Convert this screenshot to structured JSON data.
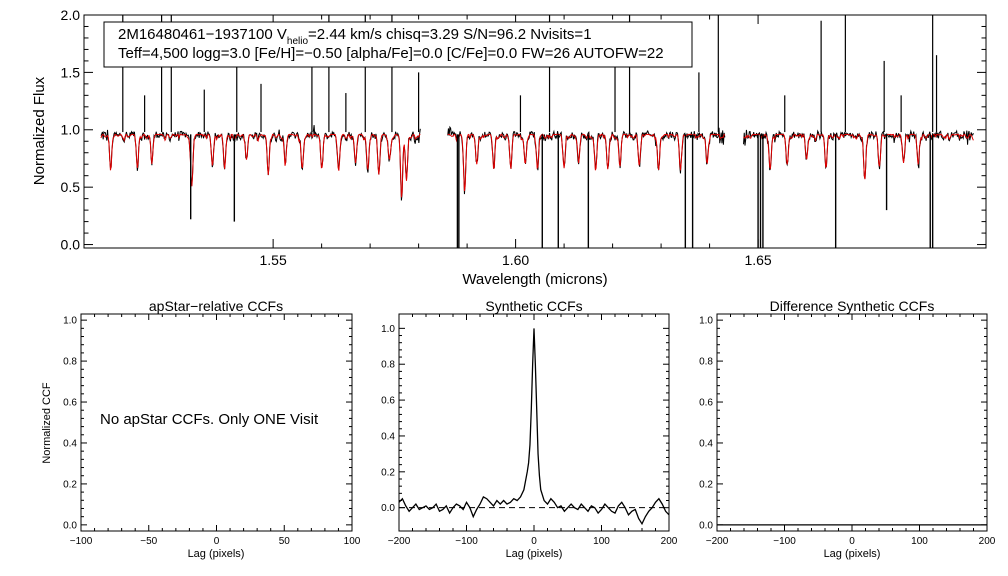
{
  "chart_data": [
    {
      "type": "line",
      "title": "",
      "xlabel": "Wavelength (microns)",
      "ylabel": "Normalized Flux",
      "xlim": [
        1.511,
        1.697
      ],
      "ylim": [
        -0.03,
        2.0
      ],
      "xticks": [
        1.55,
        1.6,
        1.65
      ],
      "xtick_labels": [
        "1.55",
        "1.60",
        "1.65"
      ],
      "yticks": [
        0.0,
        0.5,
        1.0,
        1.5,
        2.0
      ],
      "ytick_labels": [
        "0.0",
        "0.5",
        "1.0",
        "1.5",
        "2.0"
      ],
      "annotation": {
        "line1_prefix": "2M16480461−1937100  V",
        "line1_sub": "helio",
        "line1_rest": "=2.44 km/s  chisq=3.29  S/N=96.2  Nvisits=1",
        "line2": "Teff=4,500 logg=3.0 [Fe/H]=−0.50 [alpha/Fe]=0.0 [C/Fe]=0.0 FW=26 AUTOFW=22"
      },
      "colors": {
        "observed": "#000000",
        "model": "#e00000"
      },
      "series": [
        {
          "name": "observed spectrum",
          "color": "#000000"
        },
        {
          "name": "synthetic model",
          "color": "#e00000"
        }
      ],
      "chips": [
        [
          1.5145,
          1.5805
        ],
        [
          1.586,
          1.6432
        ],
        [
          1.647,
          1.6945
        ]
      ],
      "spikes_up": [
        {
          "x": 1.519,
          "y": 2.0
        },
        {
          "x": 1.5235,
          "y": 1.3
        },
        {
          "x": 1.527,
          "y": 2.0
        },
        {
          "x": 1.529,
          "y": 2.0
        },
        {
          "x": 1.5358,
          "y": 1.35
        },
        {
          "x": 1.5425,
          "y": 1.75
        },
        {
          "x": 1.5475,
          "y": 1.4
        },
        {
          "x": 1.558,
          "y": 1.55
        },
        {
          "x": 1.5615,
          "y": 2.0
        },
        {
          "x": 1.565,
          "y": 1.32
        },
        {
          "x": 1.569,
          "y": 2.0
        },
        {
          "x": 1.5745,
          "y": 2.0
        },
        {
          "x": 1.58,
          "y": 1.5
        },
        {
          "x": 1.601,
          "y": 1.3
        },
        {
          "x": 1.607,
          "y": 2.0
        },
        {
          "x": 1.6205,
          "y": 1.6
        },
        {
          "x": 1.6235,
          "y": 2.0
        },
        {
          "x": 1.6378,
          "y": 1.5
        },
        {
          "x": 1.6418,
          "y": 2.0
        },
        {
          "x": 1.6555,
          "y": 1.3
        },
        {
          "x": 1.663,
          "y": 1.95
        },
        {
          "x": 1.668,
          "y": 2.0
        },
        {
          "x": 1.676,
          "y": 1.6
        },
        {
          "x": 1.6795,
          "y": 1.3
        },
        {
          "x": 1.686,
          "y": 2.0
        },
        {
          "x": 1.6868,
          "y": 1.65
        }
      ],
      "spikes_down": [
        {
          "x": 1.533,
          "y": 0.22
        },
        {
          "x": 1.542,
          "y": 0.2
        },
        {
          "x": 1.588,
          "y": -0.03
        },
        {
          "x": 1.5883,
          "y": -0.03
        },
        {
          "x": 1.6055,
          "y": -0.03
        },
        {
          "x": 1.6088,
          "y": -0.03
        },
        {
          "x": 1.615,
          "y": -0.03
        },
        {
          "x": 1.635,
          "y": -0.03
        },
        {
          "x": 1.6365,
          "y": -0.03
        },
        {
          "x": 1.65,
          "y": -0.03
        },
        {
          "x": 1.6505,
          "y": -0.03
        },
        {
          "x": 1.651,
          "y": -0.03
        },
        {
          "x": 1.666,
          "y": -0.03
        },
        {
          "x": 1.6765,
          "y": 0.3
        },
        {
          "x": 1.6855,
          "y": -0.03
        },
        {
          "x": 1.686,
          "y": -0.03
        }
      ],
      "absorption_lines": [
        {
          "x": 1.5165,
          "depth": 0.3
        },
        {
          "x": 1.522,
          "depth": 0.28
        },
        {
          "x": 1.525,
          "depth": 0.22
        },
        {
          "x": 1.5332,
          "depth": 0.45
        },
        {
          "x": 1.5375,
          "depth": 0.25
        },
        {
          "x": 1.54,
          "depth": 0.3
        },
        {
          "x": 1.5445,
          "depth": 0.22
        },
        {
          "x": 1.549,
          "depth": 0.35
        },
        {
          "x": 1.5525,
          "depth": 0.25
        },
        {
          "x": 1.556,
          "depth": 0.3
        },
        {
          "x": 1.56,
          "depth": 0.28
        },
        {
          "x": 1.5635,
          "depth": 0.32
        },
        {
          "x": 1.567,
          "depth": 0.25
        },
        {
          "x": 1.5695,
          "depth": 0.3
        },
        {
          "x": 1.5718,
          "depth": 0.35
        },
        {
          "x": 1.574,
          "depth": 0.22
        },
        {
          "x": 1.5765,
          "depth": 0.55
        },
        {
          "x": 1.5775,
          "depth": 0.4
        },
        {
          "x": 1.5895,
          "depth": 0.5
        },
        {
          "x": 1.592,
          "depth": 0.25
        },
        {
          "x": 1.5955,
          "depth": 0.3
        },
        {
          "x": 1.599,
          "depth": 0.28
        },
        {
          "x": 1.602,
          "depth": 0.25
        },
        {
          "x": 1.6045,
          "depth": 0.3
        },
        {
          "x": 1.61,
          "depth": 0.28
        },
        {
          "x": 1.613,
          "depth": 0.25
        },
        {
          "x": 1.6165,
          "depth": 0.32
        },
        {
          "x": 1.619,
          "depth": 0.3
        },
        {
          "x": 1.6215,
          "depth": 0.28
        },
        {
          "x": 1.6255,
          "depth": 0.25
        },
        {
          "x": 1.6295,
          "depth": 0.3
        },
        {
          "x": 1.634,
          "depth": 0.28
        },
        {
          "x": 1.6395,
          "depth": 0.25
        },
        {
          "x": 1.6525,
          "depth": 0.3
        },
        {
          "x": 1.656,
          "depth": 0.25
        },
        {
          "x": 1.66,
          "depth": 0.22
        },
        {
          "x": 1.664,
          "depth": 0.28
        },
        {
          "x": 1.672,
          "depth": 0.4
        },
        {
          "x": 1.675,
          "depth": 0.25
        },
        {
          "x": 1.68,
          "depth": 0.22
        },
        {
          "x": 1.683,
          "depth": 0.25
        }
      ]
    },
    {
      "type": "line",
      "title": "apStar−relative CCFs",
      "xlabel": "Lag (pixels)",
      "ylabel": "Normalized CCF",
      "xlim": [
        -100,
        100
      ],
      "ylim": [
        -0.03,
        1.03
      ],
      "xticks": [
        -100,
        -50,
        0,
        50,
        100
      ],
      "xtick_labels": [
        "−100",
        "−50",
        "0",
        "50",
        "100"
      ],
      "yticks": [
        0.0,
        0.2,
        0.4,
        0.6,
        0.8,
        1.0
      ],
      "ytick_labels": [
        "0.0",
        "0.2",
        "0.4",
        "0.6",
        "0.8",
        "1.0"
      ],
      "message": "No apStar CCFs.  Only ONE Visit",
      "series": []
    },
    {
      "type": "line",
      "title": "Synthetic CCFs",
      "xlabel": "Lag (pixels)",
      "ylabel": "",
      "xlim": [
        -200,
        200
      ],
      "ylim": [
        -0.13,
        1.08
      ],
      "xticks": [
        -200,
        -100,
        0,
        100,
        200
      ],
      "xtick_labels": [
        "−200",
        "−100",
        "0",
        "100",
        "200"
      ],
      "yticks": [
        0.0,
        0.2,
        0.4,
        0.6,
        0.8,
        1.0
      ],
      "ytick_labels": [
        "0.0",
        "0.2",
        "0.4",
        "0.6",
        "0.8",
        "1.0"
      ],
      "baseline": 0.0,
      "series": [
        {
          "name": "synthetic CCF",
          "x": [
            -200,
            -195,
            -190,
            -185,
            -180,
            -175,
            -170,
            -165,
            -160,
            -155,
            -150,
            -145,
            -140,
            -135,
            -130,
            -125,
            -120,
            -115,
            -110,
            -105,
            -100,
            -95,
            -90,
            -85,
            -80,
            -75,
            -70,
            -65,
            -60,
            -55,
            -50,
            -45,
            -40,
            -35,
            -30,
            -25,
            -20,
            -15,
            -10,
            -8,
            -6,
            -4,
            -2,
            0,
            2,
            4,
            6,
            8,
            10,
            15,
            20,
            25,
            30,
            35,
            40,
            45,
            50,
            55,
            60,
            65,
            70,
            75,
            80,
            85,
            90,
            95,
            100,
            105,
            110,
            115,
            120,
            125,
            130,
            135,
            140,
            145,
            150,
            155,
            160,
            165,
            170,
            175,
            180,
            185,
            190,
            195,
            200
          ],
          "values": [
            0.03,
            0.05,
            0.01,
            -0.02,
            0.0,
            0.02,
            -0.01,
            0.0,
            0.01,
            -0.01,
            0.0,
            0.02,
            -0.02,
            -0.01,
            0.01,
            -0.03,
            0.0,
            0.02,
            0.01,
            -0.01,
            0.03,
            0.0,
            -0.05,
            -0.01,
            0.02,
            0.06,
            0.05,
            0.03,
            0.01,
            0.04,
            0.02,
            0.04,
            0.02,
            0.03,
            0.05,
            0.04,
            0.06,
            0.1,
            0.2,
            0.25,
            0.35,
            0.55,
            0.8,
            1.0,
            0.8,
            0.55,
            0.3,
            0.18,
            0.1,
            0.04,
            0.02,
            0.05,
            0.03,
            0.0,
            0.01,
            -0.02,
            0.0,
            0.02,
            0.0,
            -0.01,
            0.02,
            0.0,
            -0.02,
            0.01,
            0.0,
            -0.03,
            -0.01,
            0.02,
            0.0,
            -0.02,
            -0.03,
            0.01,
            0.03,
            0.0,
            -0.04,
            -0.02,
            -0.01,
            -0.06,
            -0.09,
            -0.05,
            -0.02,
            0.0,
            0.03,
            0.05,
            0.02,
            -0.02,
            -0.04
          ]
        }
      ]
    },
    {
      "type": "line",
      "title": "Difference Synthetic CCFs",
      "xlabel": "Lag (pixels)",
      "ylabel": "",
      "xlim": [
        -200,
        200
      ],
      "ylim": [
        -0.03,
        1.03
      ],
      "xticks": [
        -200,
        -100,
        0,
        100,
        200
      ],
      "xtick_labels": [
        "−200",
        "−100",
        "0",
        "100",
        "200"
      ],
      "yticks": [
        0.0,
        0.2,
        0.4,
        0.6,
        0.8,
        1.0
      ],
      "ytick_labels": [
        "0.0",
        "0.2",
        "0.4",
        "0.6",
        "0.8",
        "1.0"
      ],
      "series": [
        {
          "name": "difference CCF",
          "x": [
            -200,
            200
          ],
          "values": [
            0.0,
            0.0
          ]
        }
      ]
    }
  ]
}
